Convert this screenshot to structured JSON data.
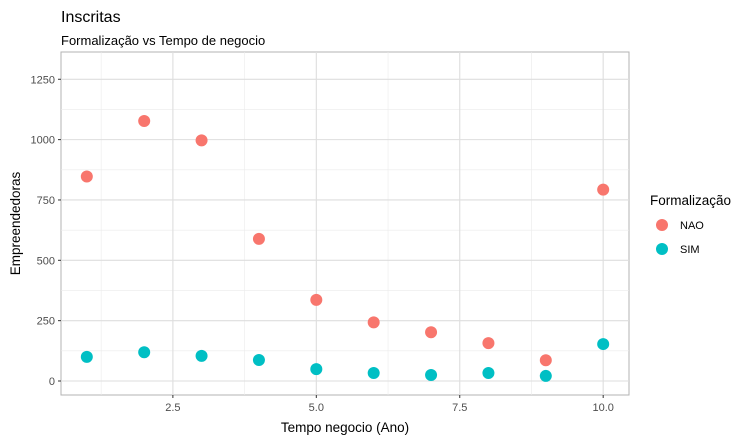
{
  "chart_data": {
    "type": "scatter",
    "title": "Inscritas",
    "subtitle": "Formalização vs Tempo de negocio",
    "xlabel": "Tempo negocio (Ano)",
    "ylabel": "Empreendedoras",
    "xlim": [
      0.55,
      10.45
    ],
    "ylim": [
      -58,
      1363
    ],
    "xticks": [
      2.5,
      5.0,
      7.5,
      10.0
    ],
    "xtick_labels": [
      "2.5",
      "5.0",
      "7.5",
      "10.0"
    ],
    "yticks": [
      0,
      250,
      500,
      750,
      1000,
      1250
    ],
    "ytick_labels": [
      "0",
      "250",
      "500",
      "750",
      "1000",
      "1250"
    ],
    "grid": true,
    "legend": {
      "title": "Formalização",
      "placement": "right"
    },
    "series": [
      {
        "name": "NAO",
        "color": "#F8766D",
        "x": [
          1,
          2,
          3,
          4,
          5,
          6,
          7,
          8,
          9,
          10
        ],
        "y": [
          847,
          1077,
          997,
          589,
          336,
          243,
          202,
          157,
          86,
          793
        ]
      },
      {
        "name": "SIM",
        "color": "#00BFC4",
        "x": [
          1,
          2,
          3,
          4,
          5,
          6,
          7,
          8,
          9,
          10
        ],
        "y": [
          100,
          119,
          104,
          87,
          49,
          33,
          25,
          33,
          21,
          153
        ]
      }
    ]
  }
}
